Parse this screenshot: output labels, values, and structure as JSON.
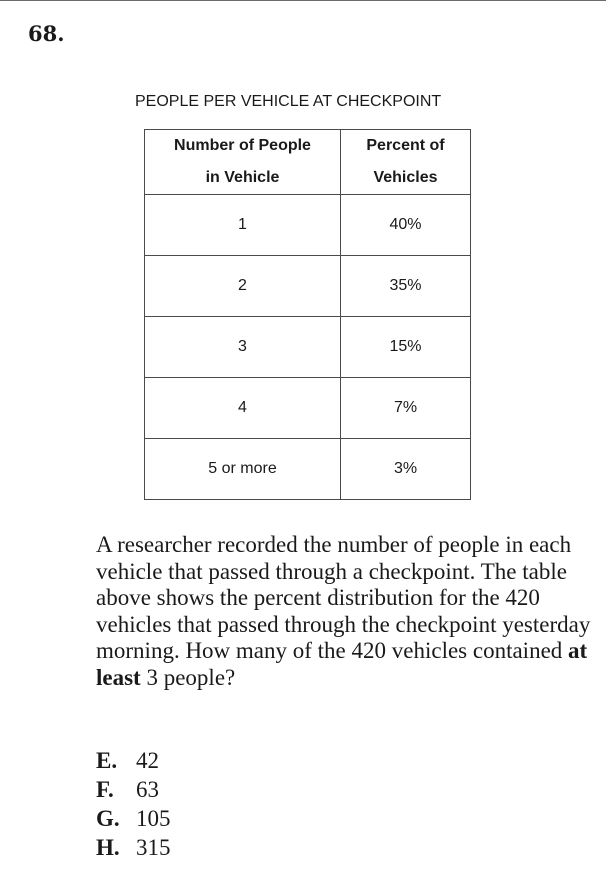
{
  "question": {
    "number": "68.",
    "stem_part1": "A researcher recorded the number of people in each vehicle that passed through a checkpoint. The table above shows the percent distribution for the 420 vehicles that passed through the checkpoint yesterday morning. How many of the 420 vehicles contained ",
    "stem_bold": "at least",
    "stem_part2": " 3 people?"
  },
  "table": {
    "caption": "PEOPLE PER VEHICLE AT CHECKPOINT",
    "header_col1_line1": "Number of People",
    "header_col1_line2": "in Vehicle",
    "header_col2_line1": "Percent of",
    "header_col2_line2": "Vehicles",
    "rows": [
      {
        "people": "1",
        "percent": "40%"
      },
      {
        "people": "2",
        "percent": "35%"
      },
      {
        "people": "3",
        "percent": "15%"
      },
      {
        "people": "4",
        "percent": "7%"
      },
      {
        "people": "5 or more",
        "percent": "3%"
      }
    ]
  },
  "choices": [
    {
      "letter": "E.",
      "value": "42"
    },
    {
      "letter": "F.",
      "value": "63"
    },
    {
      "letter": "G.",
      "value": "105"
    },
    {
      "letter": "H.",
      "value": "315"
    }
  ]
}
